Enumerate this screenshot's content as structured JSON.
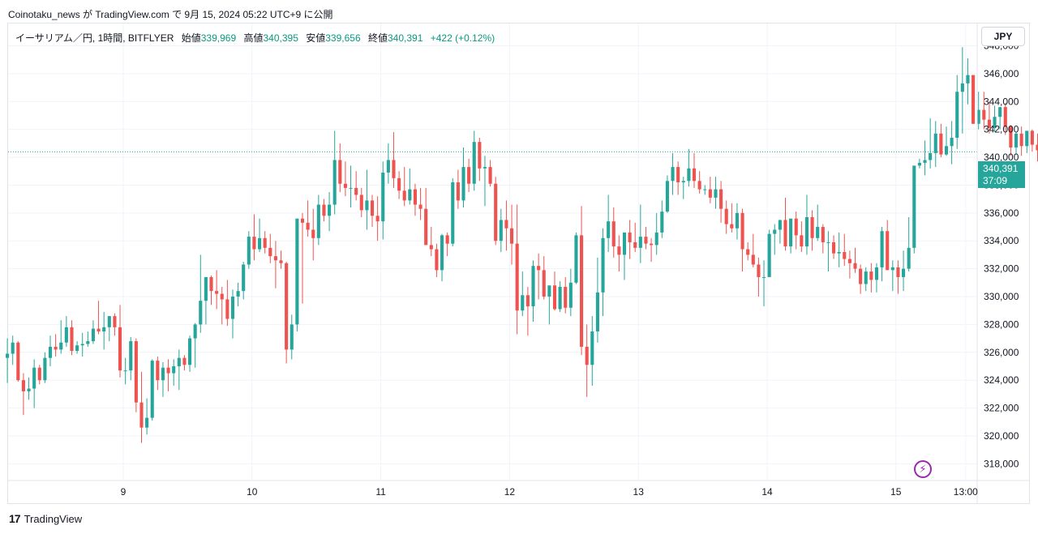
{
  "header": {
    "text": "Coinotaku_news が TradingView.com で 9月 15, 2024 05:22 UTC+9 に公開"
  },
  "legend": {
    "symbol": "イーサリアム／円, 1時間, BITFLYER",
    "open_label": "始値",
    "open": "339,969",
    "high_label": "高値",
    "high": "340,395",
    "low_label": "安値",
    "low": "339,656",
    "close_label": "終値",
    "close": "340,391",
    "change": "+422 (+0.12%)"
  },
  "currency_button": "JPY",
  "last_price": {
    "value": "340,391",
    "countdown": "37:09"
  },
  "brand": {
    "logo": "17",
    "name": "TradingView"
  },
  "colors": {
    "up": "#26a69a",
    "down": "#ef5350",
    "grid": "#f0f3fa",
    "price_line": "#26a69a",
    "text": "#131722"
  },
  "icons": {
    "alert": "lightning-icon",
    "logo": "tradingview-logo-icon"
  },
  "chart_data": {
    "type": "candlestick",
    "y_ticks": [
      "348,000",
      "346,000",
      "344,000",
      "342,000",
      "340,000",
      "338,000",
      "336,000",
      "334,000",
      "332,000",
      "330,000",
      "328,000",
      "326,000",
      "324,000",
      "322,000",
      "320,000",
      "318,000"
    ],
    "ylim": [
      316800,
      349600
    ],
    "x_ticks": [
      {
        "label": "9",
        "day": 9
      },
      {
        "label": "10",
        "day": 10
      },
      {
        "label": "11",
        "day": 11
      },
      {
        "label": "12",
        "day": 12
      },
      {
        "label": "13",
        "day": 13
      },
      {
        "label": "14",
        "day": 14
      },
      {
        "label": "15",
        "day": 15
      },
      {
        "label": "13:00",
        "day": 15.5417
      }
    ],
    "start_day": 8.1,
    "hours_per_candle": 1,
    "series_ohlc": [
      [
        325600,
        327000,
        323800,
        325900
      ],
      [
        325900,
        327200,
        325100,
        326700
      ],
      [
        326700,
        326800,
        323900,
        324000
      ],
      [
        324000,
        324500,
        321500,
        323200
      ],
      [
        323200,
        324200,
        322600,
        323400
      ],
      [
        323400,
        325500,
        322000,
        324900
      ],
      [
        324900,
        325100,
        323700,
        324000
      ],
      [
        324000,
        326000,
        323800,
        325600
      ],
      [
        325600,
        327200,
        325000,
        326400
      ],
      [
        326400,
        327300,
        325700,
        326200
      ],
      [
        326200,
        328300,
        325900,
        326700
      ],
      [
        326700,
        328600,
        326400,
        327800
      ],
      [
        327800,
        328300,
        325800,
        326100
      ],
      [
        326100,
        326800,
        325900,
        326500
      ],
      [
        326500,
        327400,
        325700,
        326600
      ],
      [
        326600,
        327500,
        326400,
        326800
      ],
      [
        326800,
        328300,
        326600,
        327700
      ],
      [
        327700,
        329700,
        327300,
        327500
      ],
      [
        327500,
        328900,
        326200,
        327800
      ],
      [
        327800,
        328600,
        326800,
        328600
      ],
      [
        328600,
        328800,
        327200,
        327800
      ],
      [
        327800,
        329400,
        324200,
        324700
      ],
      [
        324700,
        325600,
        323700,
        324700
      ],
      [
        324700,
        327100,
        324000,
        326800
      ],
      [
        326800,
        327000,
        321700,
        322400
      ],
      [
        322400,
        324600,
        319500,
        320600
      ],
      [
        320600,
        322700,
        320100,
        321300
      ],
      [
        321300,
        325500,
        321100,
        325400
      ],
      [
        325400,
        325700,
        323300,
        324000
      ],
      [
        324000,
        325300,
        322800,
        324900
      ],
      [
        324900,
        325500,
        323200,
        324500
      ],
      [
        324500,
        325500,
        323600,
        325000
      ],
      [
        325000,
        326200,
        323300,
        325600
      ],
      [
        325600,
        325800,
        324700,
        325100
      ],
      [
        325100,
        327200,
        324600,
        327000
      ],
      [
        327000,
        328100,
        324900,
        328000
      ],
      [
        328000,
        333000,
        327400,
        329700
      ],
      [
        329700,
        331000,
        328000,
        331400
      ],
      [
        331400,
        331500,
        329400,
        330400
      ],
      [
        330400,
        331900,
        329100,
        330200
      ],
      [
        330200,
        330700,
        328000,
        329800
      ],
      [
        329800,
        331200,
        327900,
        328400
      ],
      [
        328400,
        330500,
        327000,
        330000
      ],
      [
        330000,
        331000,
        329300,
        330400
      ],
      [
        330400,
        332500,
        329800,
        332300
      ],
      [
        332300,
        334700,
        332000,
        334300
      ],
      [
        334300,
        335900,
        332600,
        333400
      ],
      [
        333400,
        335600,
        333200,
        334200
      ],
      [
        334200,
        334700,
        333100,
        333500
      ],
      [
        333500,
        334500,
        332400,
        332900
      ],
      [
        332900,
        334000,
        330600,
        332600
      ],
      [
        332600,
        333300,
        332000,
        332400
      ],
      [
        332400,
        332500,
        325200,
        326200
      ],
      [
        326200,
        328700,
        325500,
        328000
      ],
      [
        328000,
        332600,
        327500,
        335600
      ],
      [
        335600,
        336000,
        329500,
        335300
      ],
      [
        335300,
        336900,
        334300,
        334800
      ],
      [
        334800,
        336300,
        332600,
        334200
      ],
      [
        334200,
        337300,
        333700,
        336600
      ],
      [
        336600,
        337000,
        335400,
        335800
      ],
      [
        335800,
        337500,
        334700,
        336600
      ],
      [
        336600,
        341900,
        335900,
        339800
      ],
      [
        339800,
        341000,
        337500,
        338100
      ],
      [
        338100,
        339700,
        337200,
        337800
      ],
      [
        337800,
        339400,
        336400,
        337800
      ],
      [
        337800,
        339000,
        336900,
        337300
      ],
      [
        337300,
        337800,
        335700,
        336200
      ],
      [
        336200,
        339100,
        334800,
        336900
      ],
      [
        336900,
        337300,
        335000,
        335800
      ],
      [
        335800,
        337200,
        334000,
        335400
      ],
      [
        335400,
        339700,
        334100,
        338900
      ],
      [
        338900,
        341000,
        338100,
        339800
      ],
      [
        339800,
        341800,
        337800,
        338500
      ],
      [
        338500,
        339000,
        337000,
        337600
      ],
      [
        337600,
        339300,
        336500,
        336900
      ],
      [
        336900,
        339200,
        336600,
        337700
      ],
      [
        337700,
        338100,
        335800,
        336600
      ],
      [
        336600,
        337800,
        335500,
        336300
      ],
      [
        336300,
        337800,
        335100,
        333700
      ],
      [
        333700,
        335000,
        332900,
        333400
      ],
      [
        333400,
        333800,
        331400,
        331900
      ],
      [
        331900,
        334500,
        331100,
        334400
      ],
      [
        334400,
        334600,
        332900,
        333800
      ],
      [
        333800,
        338500,
        333600,
        338200
      ],
      [
        338200,
        339100,
        336300,
        336900
      ],
      [
        336900,
        340700,
        336400,
        339300
      ],
      [
        339300,
        339900,
        337500,
        338100
      ],
      [
        338100,
        341900,
        337600,
        341100
      ],
      [
        341100,
        341400,
        338300,
        339200
      ],
      [
        339200,
        340100,
        336500,
        339300
      ],
      [
        339300,
        339800,
        337900,
        338100
      ],
      [
        338100,
        338600,
        333700,
        334000
      ],
      [
        334000,
        336300,
        333200,
        335500
      ],
      [
        335500,
        336900,
        333300,
        334900
      ],
      [
        334900,
        336600,
        332300,
        333800
      ],
      [
        333800,
        336600,
        327300,
        329000
      ],
      [
        329000,
        331800,
        328600,
        330100
      ],
      [
        330100,
        330700,
        327200,
        329300
      ],
      [
        329300,
        332600,
        328200,
        332200
      ],
      [
        332200,
        333100,
        329800,
        331900
      ],
      [
        331900,
        332900,
        329800,
        330000
      ],
      [
        330000,
        330800,
        328000,
        330800
      ],
      [
        330800,
        331800,
        329000,
        329100
      ],
      [
        329100,
        331100,
        328900,
        330700
      ],
      [
        330700,
        331400,
        328800,
        329200
      ],
      [
        329200,
        332000,
        328600,
        331000
      ],
      [
        331000,
        334600,
        330900,
        334400
      ],
      [
        334400,
        336500,
        325800,
        326400
      ],
      [
        326400,
        328000,
        322800,
        325100
      ],
      [
        325100,
        328600,
        323600,
        327500
      ],
      [
        327500,
        332800,
        326700,
        330300
      ],
      [
        330300,
        334900,
        328600,
        334200
      ],
      [
        334200,
        337300,
        333200,
        335400
      ],
      [
        335400,
        336400,
        332800,
        333600
      ],
      [
        333600,
        334400,
        331800,
        333000
      ],
      [
        333000,
        334300,
        331200,
        334600
      ],
      [
        334600,
        335500,
        332700,
        333900
      ],
      [
        333900,
        335300,
        333200,
        333500
      ],
      [
        333500,
        336600,
        332400,
        334300
      ],
      [
        334300,
        335000,
        333400,
        333800
      ],
      [
        333800,
        334200,
        332500,
        333700
      ],
      [
        333700,
        336000,
        333000,
        334600
      ],
      [
        334600,
        336900,
        334200,
        336100
      ],
      [
        336100,
        338700,
        336000,
        338300
      ],
      [
        338300,
        340300,
        337300,
        339300
      ],
      [
        339300,
        339700,
        337300,
        338200
      ],
      [
        338200,
        338600,
        337000,
        338300
      ],
      [
        338300,
        340600,
        337900,
        339200
      ],
      [
        339200,
        340300,
        337800,
        338300
      ],
      [
        338300,
        339000,
        337400,
        337700
      ],
      [
        337700,
        338000,
        337300,
        337700
      ],
      [
        337700,
        338600,
        336700,
        337100
      ],
      [
        337100,
        338600,
        336300,
        337700
      ],
      [
        337700,
        338300,
        335300,
        336300
      ],
      [
        336300,
        336900,
        334500,
        335200
      ],
      [
        335200,
        336700,
        334600,
        334900
      ],
      [
        334900,
        336700,
        334100,
        336000
      ],
      [
        336000,
        336300,
        331800,
        333400
      ],
      [
        333400,
        333900,
        332600,
        333000
      ],
      [
        333000,
        334500,
        332100,
        332300
      ],
      [
        332300,
        332800,
        330000,
        331400
      ],
      [
        331400,
        332600,
        329300,
        331400
      ],
      [
        331400,
        334800,
        331500,
        334500
      ],
      [
        334500,
        335200,
        333000,
        334800
      ],
      [
        334800,
        335300,
        333800,
        335500
      ],
      [
        335500,
        337100,
        333300,
        333600
      ],
      [
        333600,
        335200,
        333100,
        335600
      ],
      [
        335600,
        336100,
        333400,
        334400
      ],
      [
        334400,
        335400,
        333200,
        333600
      ],
      [
        333600,
        337300,
        333000,
        335700
      ],
      [
        335700,
        336200,
        333300,
        334200
      ],
      [
        334200,
        336600,
        334000,
        335000
      ],
      [
        335000,
        335200,
        333100,
        333900
      ],
      [
        333900,
        334700,
        331800,
        333900
      ],
      [
        333900,
        334400,
        332700,
        333100
      ],
      [
        333100,
        334600,
        332100,
        333200
      ],
      [
        333200,
        334500,
        332200,
        332700
      ],
      [
        332700,
        333300,
        331300,
        332400
      ],
      [
        332400,
        333500,
        331700,
        332000
      ],
      [
        332000,
        332300,
        330200,
        330900
      ],
      [
        330900,
        332100,
        330400,
        331800
      ],
      [
        331800,
        332400,
        330300,
        331200
      ],
      [
        331200,
        332400,
        330300,
        332100
      ],
      [
        332100,
        335000,
        331100,
        334700
      ],
      [
        334700,
        335500,
        332100,
        331900
      ],
      [
        331900,
        332600,
        330400,
        332100
      ],
      [
        332100,
        332600,
        330200,
        331400
      ],
      [
        331400,
        333300,
        330400,
        332000
      ],
      [
        332000,
        335700,
        331800,
        333500
      ],
      [
        333500,
        338700,
        333100,
        339400
      ],
      [
        339400,
        339900,
        339200,
        339600
      ],
      [
        339600,
        341200,
        338700,
        339800
      ],
      [
        339800,
        342800,
        339200,
        340300
      ],
      [
        340300,
        342600,
        339300,
        341700
      ],
      [
        341700,
        342400,
        340000,
        340200
      ],
      [
        340200,
        342200,
        340100,
        340800
      ],
      [
        340800,
        342600,
        339500,
        341400
      ],
      [
        341400,
        345900,
        340600,
        344700
      ],
      [
        344700,
        347900,
        341700,
        345300
      ],
      [
        345300,
        347100,
        343800,
        345900
      ],
      [
        345900,
        345900,
        342400,
        342400
      ],
      [
        342400,
        344700,
        342000,
        343400
      ],
      [
        343400,
        344700,
        342000,
        342700
      ],
      [
        342700,
        344000,
        341700,
        342100
      ],
      [
        342100,
        343700,
        341800,
        342900
      ],
      [
        342900,
        343600,
        342000,
        343600
      ],
      [
        343600,
        343900,
        341600,
        342200
      ],
      [
        342200,
        342300,
        340100,
        340700
      ],
      [
        340700,
        341800,
        340200,
        341700
      ],
      [
        341700,
        342200,
        340100,
        340800
      ],
      [
        340800,
        341800,
        340300,
        341900
      ],
      [
        341900,
        342000,
        340400,
        340900
      ],
      [
        340900,
        341700,
        339700,
        340500
      ],
      [
        340500,
        341900,
        340200,
        341600
      ],
      [
        341600,
        342300,
        341300,
        342100
      ],
      [
        342100,
        342400,
        341000,
        341600
      ],
      [
        341600,
        342200,
        340800,
        341300
      ],
      [
        341300,
        342200,
        341100,
        342000
      ],
      [
        342000,
        342100,
        340900,
        341400
      ],
      [
        341400,
        341800,
        340600,
        340800
      ],
      [
        340800,
        341200,
        339700,
        339900
      ],
      [
        339900,
        340100,
        335700,
        339800
      ],
      [
        339969,
        340395,
        339656,
        340391
      ]
    ]
  }
}
